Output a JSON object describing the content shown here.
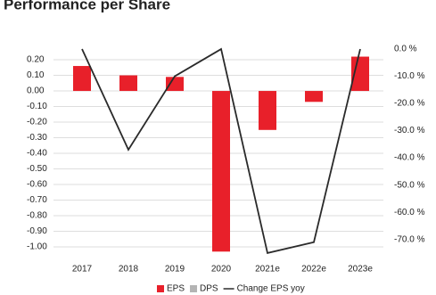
{
  "chart_data": {
    "type": "bar-line",
    "title": "Performance per Share",
    "categories": [
      "2017",
      "2018",
      "2019",
      "2020",
      "2021e",
      "2022e",
      "2023e"
    ],
    "series": [
      {
        "name": "EPS",
        "color": "#e8202a",
        "values": [
          0.16,
          0.1,
          0.09,
          -1.03,
          -0.25,
          -0.07,
          0.22
        ]
      },
      {
        "name": "DPS",
        "color": "#b4b4b4",
        "values": [
          null,
          null,
          null,
          null,
          null,
          null,
          null
        ]
      },
      {
        "name": "Change EPS yoy",
        "color": "#2a2a2a",
        "axis": "y2",
        "values": [
          0,
          -37,
          -10,
          0,
          -75,
          -71,
          0
        ]
      }
    ],
    "ylim": [
      -1.074,
      0.286
    ],
    "yticks": [
      {
        "value": 0.2,
        "label": "0.20"
      },
      {
        "value": 0.1,
        "label": "0.10"
      },
      {
        "value": 0,
        "label": "0.00"
      },
      {
        "value": -0.1,
        "label": "-0.10"
      },
      {
        "value": -0.2,
        "label": "-0.20"
      },
      {
        "value": -0.3,
        "label": "-0.30"
      },
      {
        "value": -0.4,
        "label": "-0.40"
      },
      {
        "value": -0.5,
        "label": "-0.50"
      },
      {
        "value": -0.6,
        "label": "-0.60"
      },
      {
        "value": -0.7,
        "label": "-0.70"
      },
      {
        "value": -0.8,
        "label": "-0.80"
      },
      {
        "value": -0.9,
        "label": "-0.90"
      },
      {
        "value": -1.0,
        "label": "-1.00"
      }
    ],
    "y2lim": [
      -77,
      1
    ],
    "y2ticks": [
      {
        "value": 0,
        "label": "0.0 %"
      },
      {
        "value": -10,
        "label": "-10.0 %"
      },
      {
        "value": -20,
        "label": "-20.0 %"
      },
      {
        "value": -30,
        "label": "-30.0 %"
      },
      {
        "value": -40,
        "label": "-40.0 %"
      },
      {
        "value": -50,
        "label": "-50.0 %"
      },
      {
        "value": -60,
        "label": "-60.0 %"
      },
      {
        "value": -70,
        "label": "-70.0 %"
      }
    ],
    "grid": true,
    "legend": "bottom"
  }
}
